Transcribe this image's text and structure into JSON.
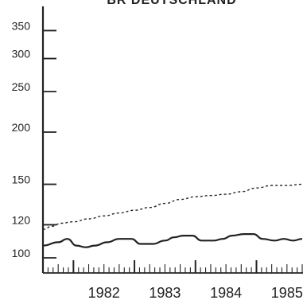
{
  "chart_data": {
    "type": "line",
    "title": "BR DEUTSCHLAND",
    "xlabel": "",
    "ylabel": "",
    "x_tick_labels": [
      "1982",
      "1983",
      "1984",
      "1985"
    ],
    "y_ticks": [
      100,
      120,
      150,
      200,
      250,
      300,
      350
    ],
    "y_tick_labels": [
      "100",
      "120",
      "150",
      "200",
      "250",
      "300",
      "350"
    ],
    "xlim": [
      1981.5,
      1985.75
    ],
    "y_scale": "log",
    "ylim": [
      92,
      400
    ],
    "grid": false,
    "legend": "none",
    "minor_x_ticks": "monthly",
    "series": [
      {
        "style": "dashed",
        "color": "#222222",
        "x": [
          1981.5,
          1981.65,
          1981.8,
          1982.0,
          1982.25,
          1982.5,
          1982.75,
          1983.0,
          1983.25,
          1983.5,
          1983.75,
          1984.0,
          1984.25,
          1984.5,
          1984.75,
          1985.0,
          1985.25,
          1985.5,
          1985.75
        ],
        "values": [
          117,
          119,
          121,
          122,
          124,
          126,
          128,
          130,
          132,
          135,
          138,
          140,
          141,
          142,
          144,
          147,
          149,
          149,
          150
        ]
      },
      {
        "style": "solid",
        "color": "#222222",
        "x": [
          1981.5,
          1981.75,
          1981.9,
          1982.05,
          1982.2,
          1982.35,
          1982.55,
          1982.75,
          1982.95,
          1983.1,
          1983.3,
          1983.5,
          1983.65,
          1983.8,
          1983.95,
          1984.1,
          1984.3,
          1984.45,
          1984.6,
          1984.8,
          1984.95,
          1985.1,
          1985.3,
          1985.45,
          1985.6,
          1985.75
        ],
        "values": [
          107,
          109,
          111,
          107,
          106,
          107,
          109,
          111,
          111,
          108,
          108,
          110,
          112,
          113,
          113,
          110,
          110,
          111,
          113,
          114,
          114,
          111,
          110,
          111,
          110,
          111
        ]
      }
    ]
  }
}
